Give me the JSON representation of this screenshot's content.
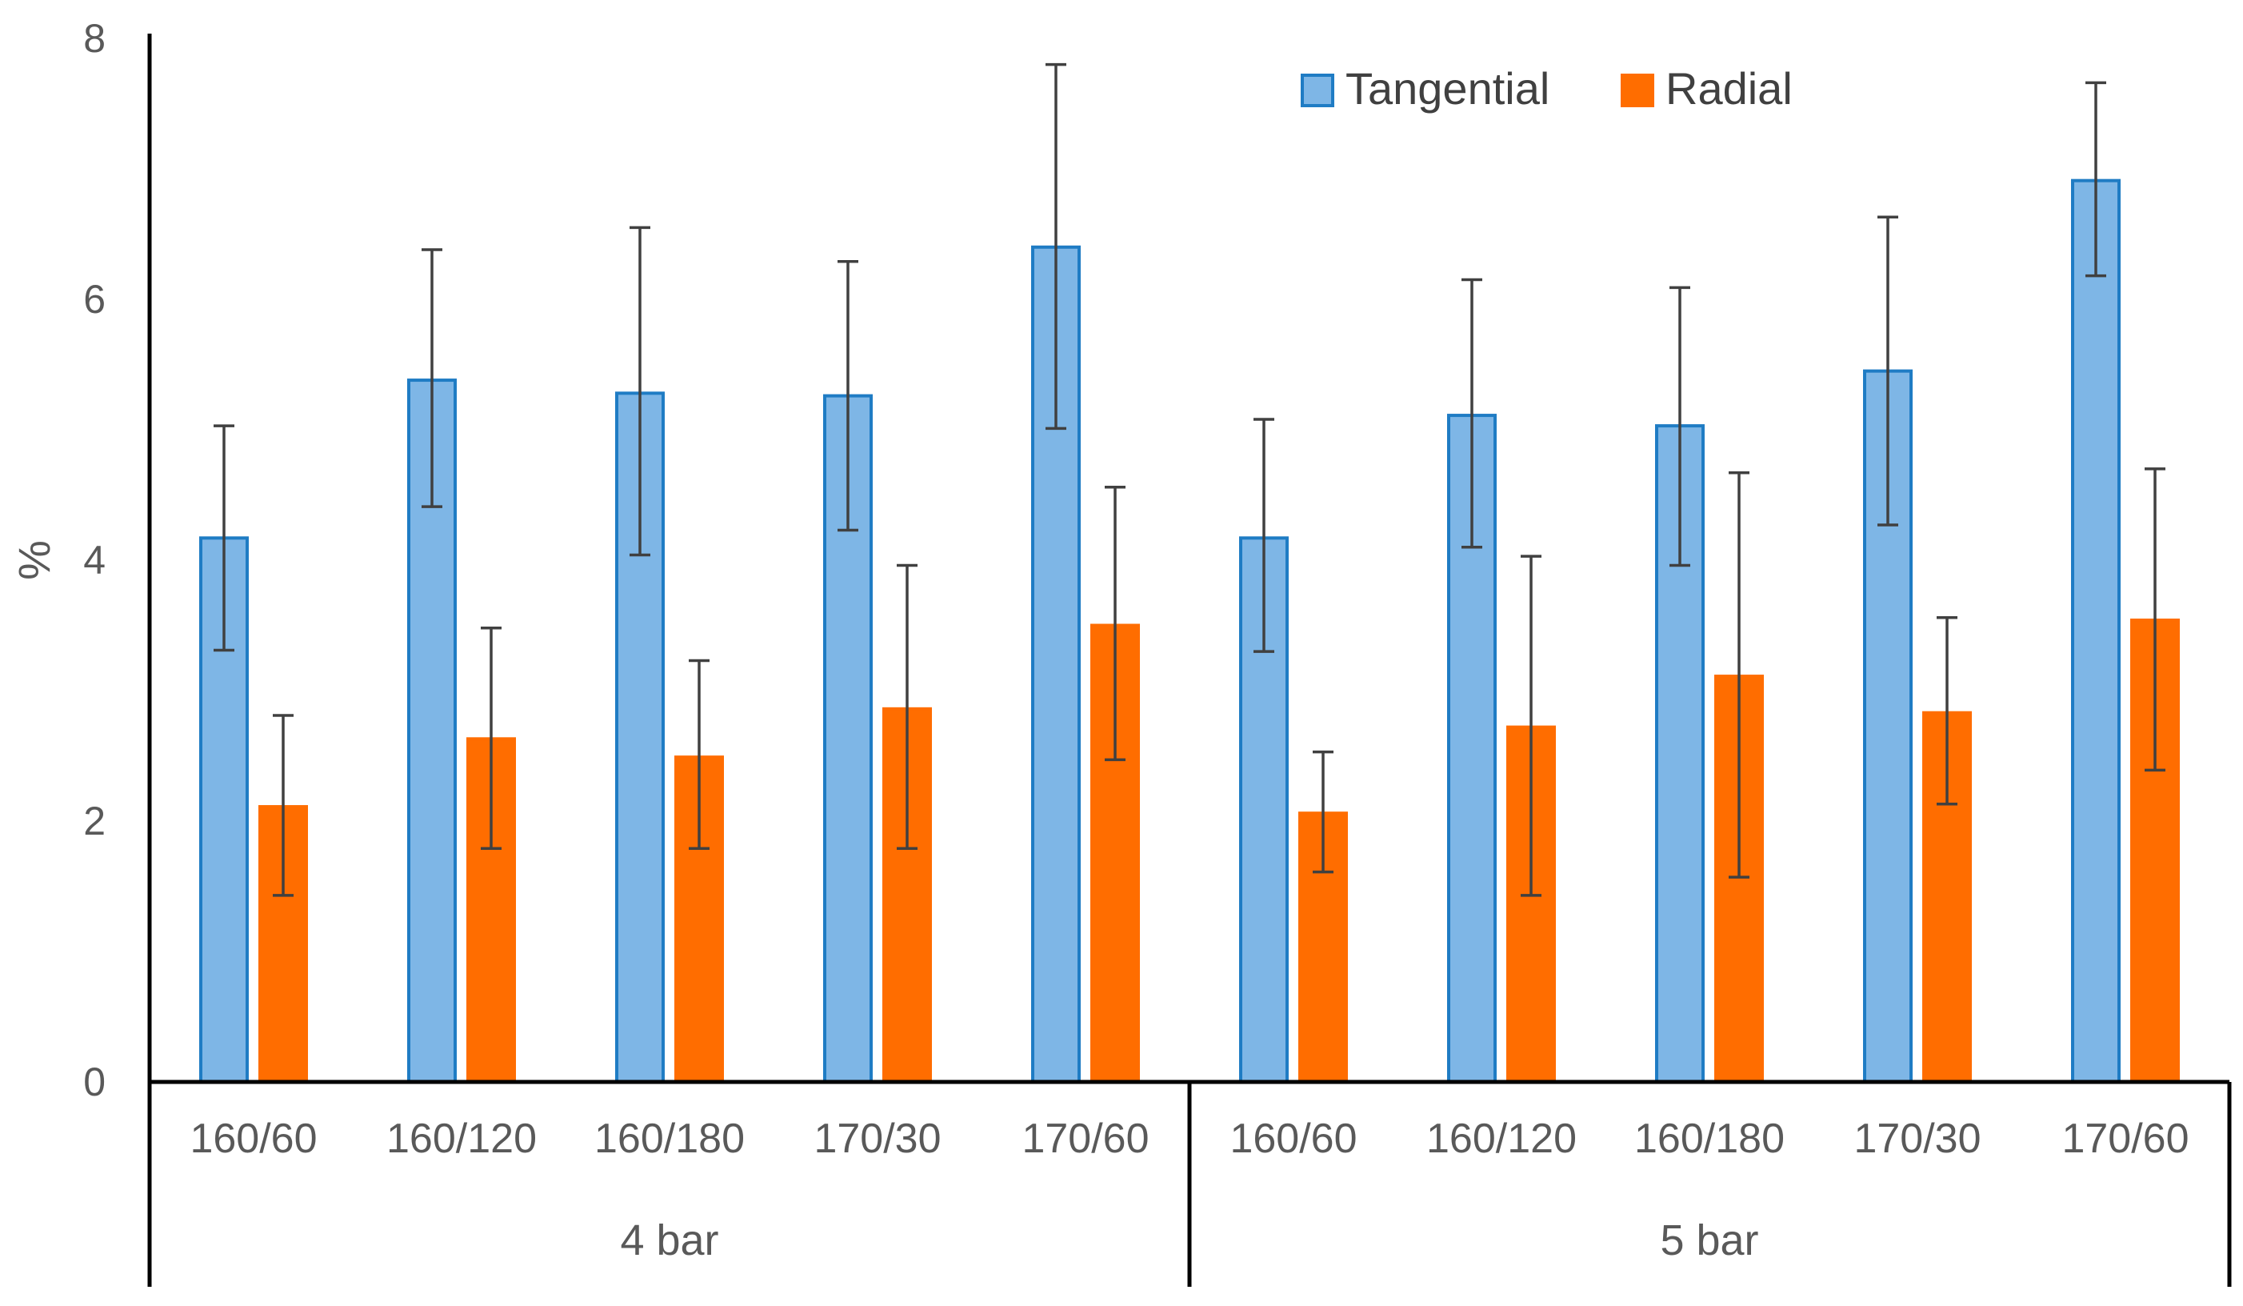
{
  "chart_data": {
    "type": "bar",
    "title": "",
    "xlabel": "",
    "ylabel": "%",
    "ylim": [
      0,
      8
    ],
    "yticks": [
      "0",
      "2",
      "4",
      "6",
      "8"
    ],
    "grid": false,
    "legend_position": "top-right",
    "groups": [
      {
        "label": "4 bar",
        "categories": [
          "160/60",
          "160/120",
          "160/180",
          "170/30",
          "170/60"
        ]
      },
      {
        "label": "5 bar",
        "categories": [
          "160/60",
          "160/120",
          "160/180",
          "170/30",
          "170/60"
        ]
      }
    ],
    "series": [
      {
        "name": "Tangential",
        "color": "#7EB6E6",
        "border_color": "#1F7CC4",
        "values": [
          4.17,
          5.38,
          5.28,
          5.26,
          6.4,
          4.17,
          5.11,
          5.03,
          5.45,
          6.91
        ],
        "error_low": [
          3.31,
          4.41,
          4.04,
          4.23,
          5.01,
          3.3,
          4.1,
          3.96,
          4.27,
          6.18
        ],
        "error_high": [
          5.03,
          6.38,
          6.55,
          6.29,
          7.8,
          5.08,
          6.15,
          6.09,
          6.63,
          7.66
        ]
      },
      {
        "name": "Radial",
        "color": "#FF6D00",
        "border_color": "#FF6D00",
        "values": [
          2.11,
          2.63,
          2.49,
          2.86,
          3.5,
          2.06,
          2.72,
          3.11,
          2.83,
          3.54
        ],
        "error_low": [
          1.43,
          1.79,
          1.79,
          1.79,
          2.47,
          1.61,
          1.43,
          1.57,
          2.13,
          2.39
        ],
        "error_high": [
          2.81,
          3.48,
          3.23,
          3.96,
          4.56,
          2.53,
          4.03,
          4.67,
          3.56,
          4.7
        ]
      }
    ]
  }
}
